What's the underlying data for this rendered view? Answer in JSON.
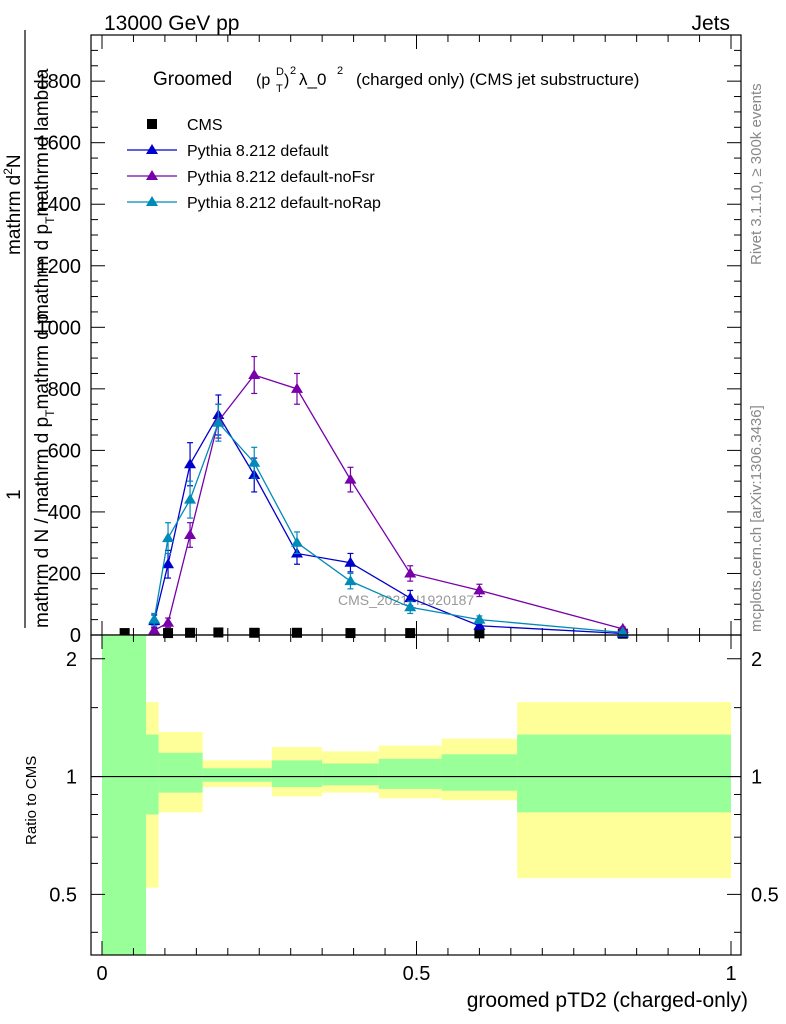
{
  "header": {
    "left": "13000 GeV pp",
    "right": "Jets"
  },
  "side_labels": {
    "rivet": "Rivet 3.1.10, ≥ 300k events",
    "mcplots": "mcplots.cern.ch [arXiv:1306.3436]"
  },
  "watermark": "CMS_2021_I1920187",
  "chart_data": [
    {
      "type": "line",
      "title": "Groomed (p_T^D)^2 λ_0^2 (charged only) (CMS jet substructure)",
      "title_parts": {
        "prefix": "Groomed",
        "p": "(p",
        "sub": "T",
        "sup": "D",
        "close": ")",
        "sq": "2",
        "lambda": "λ_0",
        "suffix": "(charged only) (CMS jet substructure)"
      },
      "ylabel_parts": {
        "num": "1",
        "den": "mathrm d N / mathrm d p",
        "den_sub": "T",
        "den_tail": "mathrm d p",
        "rhs_num": "mathrm d",
        "rhs_num_sup": "2",
        "rhs_num_tail": "N",
        "rhs_den": "mathrm d p",
        "rhs_den_sub": "T",
        "rhs_den_tail": "mathrm d lambda"
      },
      "xlim": [
        0,
        1
      ],
      "ylim": [
        0,
        1950
      ],
      "yticks": [
        0,
        200,
        400,
        600,
        800,
        1000,
        1200,
        1400,
        1600,
        1800
      ],
      "ytick_labels": [
        "0",
        "200",
        "400",
        "600",
        "800",
        "1000",
        "1200",
        "1400",
        "1600",
        "1800"
      ],
      "legend_position": "top-left",
      "series": [
        {
          "name": "CMS",
          "color": "#000000",
          "marker": "square",
          "x": [
            0.036,
            0.105,
            0.14,
            0.185,
            0.242,
            0.31,
            0.395,
            0.49,
            0.6,
            0.828
          ],
          "y": [
            3,
            3,
            4,
            5,
            4,
            4,
            3,
            3,
            2,
            1
          ]
        },
        {
          "name": "Pythia 8.212 default",
          "color": "#0000cc",
          "marker": "triangle",
          "x": [
            0.083,
            0.105,
            0.14,
            0.185,
            0.242,
            0.31,
            0.395,
            0.49,
            0.6,
            0.828
          ],
          "y": [
            45,
            230,
            555,
            715,
            520,
            265,
            235,
            120,
            30,
            5
          ],
          "err": [
            20,
            45,
            70,
            65,
            55,
            35,
            30,
            25,
            10,
            3
          ]
        },
        {
          "name": "Pythia 8.212 default-noFsr",
          "color": "#7700aa",
          "marker": "triangle",
          "x": [
            0.083,
            0.105,
            0.14,
            0.185,
            0.242,
            0.31,
            0.395,
            0.49,
            0.6,
            0.828
          ],
          "y": [
            15,
            40,
            325,
            695,
            845,
            800,
            505,
            200,
            145,
            20
          ],
          "err": [
            8,
            15,
            40,
            55,
            60,
            50,
            40,
            25,
            20,
            6
          ]
        },
        {
          "name": "Pythia 8.212 default-noRap",
          "color": "#008ab8",
          "marker": "triangle",
          "x": [
            0.083,
            0.105,
            0.14,
            0.185,
            0.242,
            0.31,
            0.395,
            0.49,
            0.6,
            0.828
          ],
          "y": [
            50,
            315,
            440,
            690,
            560,
            300,
            175,
            90,
            50,
            8
          ],
          "err": [
            20,
            50,
            60,
            60,
            50,
            35,
            25,
            20,
            12,
            4
          ]
        }
      ]
    },
    {
      "type": "area",
      "title": "",
      "xlabel": "groomed pTD2 (charged-only)",
      "ylabel": "Ratio to CMS",
      "xlim": [
        0,
        1
      ],
      "ylim": [
        0.35,
        2.3
      ],
      "yscale": "log",
      "xticks": [
        0,
        0.5,
        1
      ],
      "xtick_labels": [
        "0",
        "0.5",
        "1"
      ],
      "yticks": [
        0.5,
        1,
        2
      ],
      "ytick_labels": [
        "0.5",
        "1",
        "2"
      ],
      "reference_line": 1,
      "bands": {
        "bin_edges": [
          0.0,
          0.07,
          0.09,
          0.16,
          0.27,
          0.35,
          0.44,
          0.54,
          0.66,
          1.0
        ],
        "stat_syst_yellow": {
          "color": "#ffff99",
          "low": [
            0.3,
            0.52,
            0.81,
            0.94,
            0.89,
            0.91,
            0.88,
            0.87,
            0.55
          ],
          "high": [
            2.5,
            1.55,
            1.3,
            1.1,
            1.19,
            1.16,
            1.2,
            1.25,
            1.55
          ]
        },
        "stat_green": {
          "color": "#99ff99",
          "low": [
            0.3,
            0.8,
            0.91,
            0.97,
            0.94,
            0.95,
            0.93,
            0.92,
            0.81
          ],
          "high": [
            2.5,
            1.28,
            1.15,
            1.05,
            1.1,
            1.08,
            1.11,
            1.14,
            1.28
          ]
        }
      }
    }
  ]
}
